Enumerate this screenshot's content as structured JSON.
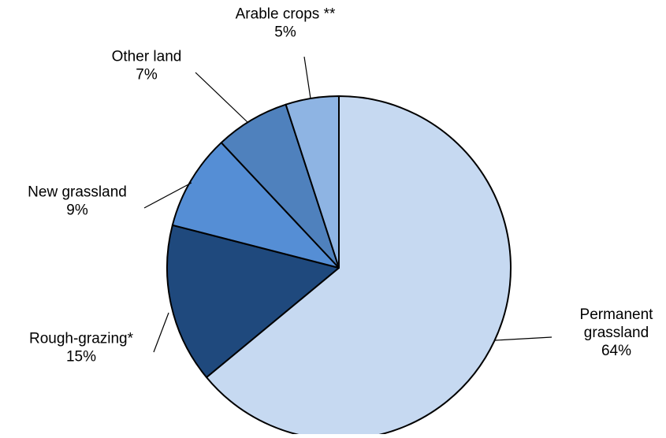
{
  "chart_data": {
    "type": "pie",
    "title": "",
    "legend": "none",
    "start": "12 o'clock",
    "direction": "clockwise",
    "slices": [
      {
        "label_lines": [
          "Permanent",
          "grassland"
        ],
        "value_label": "64%",
        "value": 64,
        "color": "#c6d9f1"
      },
      {
        "label_lines": [
          "Rough-grazing*"
        ],
        "value_label": "15%",
        "value": 15,
        "color": "#1f497d"
      },
      {
        "label_lines": [
          "New grassland"
        ],
        "value_label": "9%",
        "value": 9,
        "color": "#558ed5"
      },
      {
        "label_lines": [
          "Other land"
        ],
        "value_label": "7%",
        "value": 7,
        "color": "#4f81bd"
      },
      {
        "label_lines": [
          "Arable crops **"
        ],
        "value_label": "5%",
        "value": 5,
        "color": "#8eb4e3"
      }
    ]
  }
}
